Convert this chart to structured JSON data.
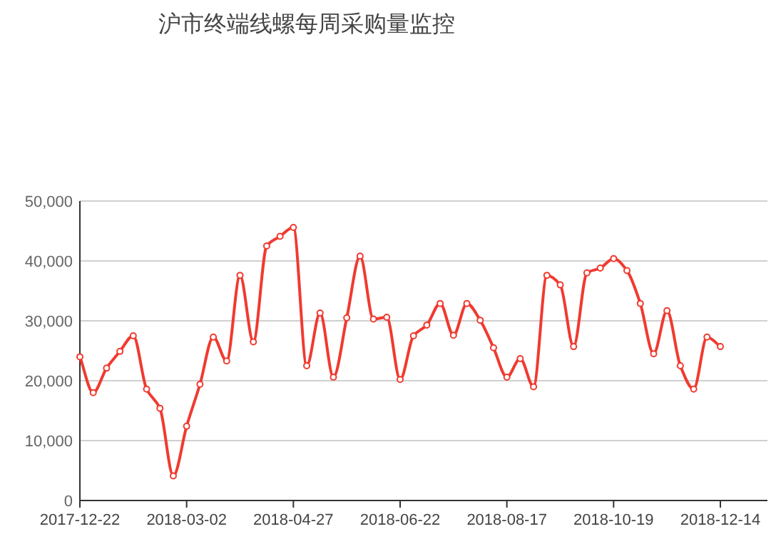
{
  "chart_data": {
    "type": "line",
    "title": "沪市终端线螺每周采购量监控",
    "categories": [
      "2017-12-22",
      null,
      null,
      null,
      null,
      null,
      null,
      null,
      "2018-03-02",
      null,
      null,
      null,
      null,
      null,
      null,
      null,
      "2018-04-27",
      null,
      null,
      null,
      null,
      null,
      null,
      null,
      "2018-06-22",
      null,
      null,
      null,
      null,
      null,
      null,
      null,
      "2018-08-17",
      null,
      null,
      null,
      null,
      null,
      null,
      null,
      "2018-10-19",
      null,
      null,
      null,
      null,
      null,
      null,
      null,
      "2018-12-14"
    ],
    "series": [
      {
        "color": "#f03a30",
        "values": [
          24000,
          18000,
          22100,
          24900,
          27500,
          18600,
          15400,
          4100,
          12400,
          19400,
          27300,
          23300,
          37600,
          26500,
          42500,
          44100,
          45600,
          22500,
          31300,
          20600,
          30500,
          40800,
          30300,
          30600,
          20200,
          27500,
          29300,
          32900,
          27600,
          32900,
          30100,
          25500,
          20600,
          23700,
          19000,
          37600,
          36000,
          25700,
          38000,
          38800,
          40400,
          38400,
          32900,
          24500,
          31700,
          22500,
          18600,
          27300,
          25700
        ]
      }
    ],
    "ylim": [
      0,
      50000
    ],
    "yticks": [
      {
        "value": 0,
        "label": "0"
      },
      {
        "value": 10000,
        "label": "10,000"
      },
      {
        "value": 20000,
        "label": "20,000"
      },
      {
        "value": 30000,
        "label": "30,000"
      },
      {
        "value": 40000,
        "label": "40,000"
      },
      {
        "value": 50000,
        "label": "50,000"
      }
    ],
    "grid": "y",
    "marker": "circle",
    "line_style": "solid"
  }
}
